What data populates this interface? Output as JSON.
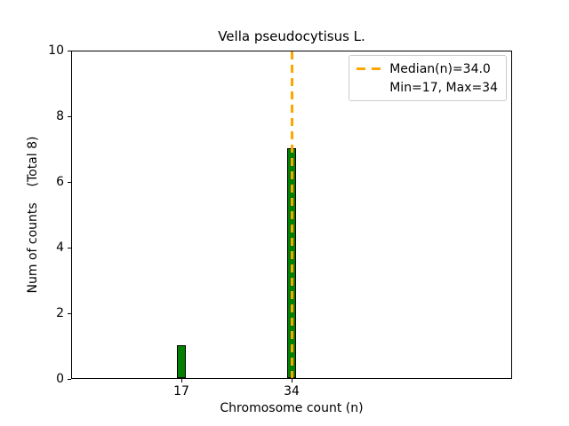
{
  "chart_data": {
    "type": "bar",
    "title": "Vella pseudocytisus L.",
    "xlabel": "Chromosome count (n)",
    "ylabel": "Num of counts    (Total 8)",
    "total": 8,
    "categories": [
      17,
      34
    ],
    "values": [
      1,
      7
    ],
    "xticks": [
      17,
      34
    ],
    "yticks": [
      0,
      2,
      4,
      6,
      8,
      10
    ],
    "xlim": [
      0,
      68
    ],
    "ylim": [
      0,
      10
    ],
    "grid": "off",
    "bar_color": "#008000",
    "bar_edge_color": "#000000",
    "median_line": {
      "x": 34,
      "color": "#FFA500",
      "style": "dashed"
    },
    "legend": {
      "position": "upper-right",
      "entries": [
        {
          "label": "Median(n)=34.0",
          "sample": "orange-dashed-line"
        },
        {
          "label": "Min=17, Max=34",
          "sample": "none"
        }
      ]
    }
  }
}
